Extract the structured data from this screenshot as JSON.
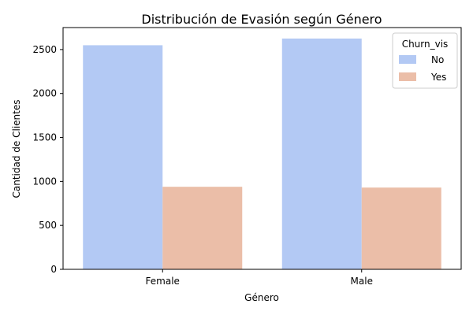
{
  "chart_data": {
    "type": "bar",
    "title": "Distribución de Evasión según Género",
    "xlabel": "Género",
    "ylabel": "Cantidad de Clientes",
    "categories": [
      "Female",
      "Male"
    ],
    "series": [
      {
        "name": "No",
        "values": [
          2549,
          2625
        ],
        "color": "#b3c9f4"
      },
      {
        "name": "Yes",
        "values": [
          939,
          930
        ],
        "color": "#ebbea8"
      }
    ],
    "ylim": [
      0,
      2750
    ],
    "yticks": [
      0,
      500,
      1000,
      1500,
      2000,
      2500
    ],
    "legend": {
      "title": "Churn_vis",
      "placement": "top-right"
    },
    "grid": false
  }
}
